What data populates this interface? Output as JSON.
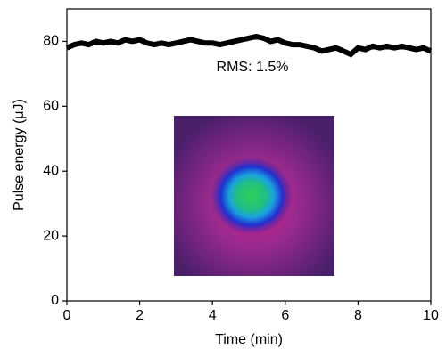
{
  "chart_data": {
    "type": "line",
    "annotation": "RMS: 1.5%",
    "xlabel": "Time (min)",
    "ylabel": "Pulse energy (μJ)",
    "x": [
      0,
      0.2,
      0.4,
      0.6,
      0.8,
      1,
      1.2,
      1.4,
      1.6,
      1.8,
      2,
      2.2,
      2.4,
      2.6,
      2.8,
      3,
      3.2,
      3.4,
      3.6,
      3.8,
      4,
      4.2,
      4.4,
      4.6,
      4.8,
      5,
      5.2,
      5.4,
      5.6,
      5.8,
      6,
      6.2,
      6.4,
      6.6,
      6.8,
      7,
      7.2,
      7.4,
      7.6,
      7.8,
      8,
      8.2,
      8.4,
      8.6,
      8.8,
      9,
      9.2,
      9.4,
      9.6,
      9.8,
      10
    ],
    "values": [
      78,
      79,
      79.5,
      79,
      80,
      79.5,
      80,
      79.5,
      80.5,
      80,
      80.5,
      79.5,
      79,
      79.5,
      79,
      79.5,
      80,
      80.5,
      80,
      79.5,
      79.5,
      79,
      79.5,
      80,
      80.5,
      81,
      81.5,
      81,
      80,
      80.5,
      79.5,
      79,
      79,
      78.5,
      78,
      77,
      77.5,
      78,
      77,
      76,
      78,
      77.5,
      78.5,
      78,
      78.5,
      78,
      78.5,
      78,
      77.5,
      78,
      77
    ],
    "color": "#000000",
    "xlim": [
      0,
      10
    ],
    "xticks": [
      0,
      2,
      4,
      6,
      8,
      10
    ],
    "ylim": [
      0,
      90
    ],
    "yticks": [
      0,
      20,
      40,
      60,
      80
    ]
  }
}
